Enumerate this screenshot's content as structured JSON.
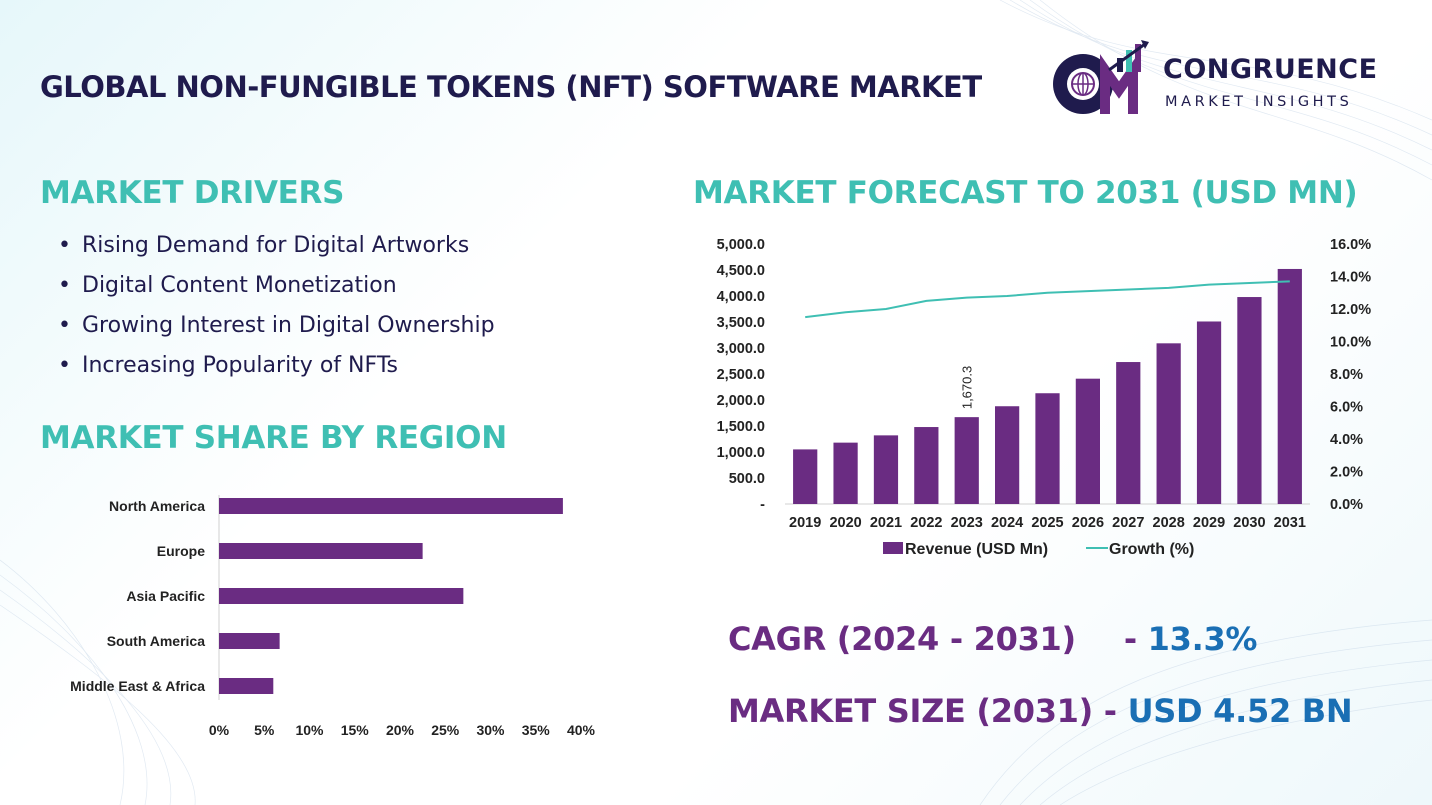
{
  "header": {
    "title": "GLOBAL NON-FUNGIBLE TOKENS (NFT) SOFTWARE MARKET",
    "logo_name": "CONGRUENCE",
    "logo_sub": "MARKET INSIGHTS"
  },
  "drivers": {
    "heading": "MARKET DRIVERS",
    "items": [
      "Rising Demand for Digital Artworks",
      "Digital Content Monetization",
      "Growing Interest in Digital Ownership",
      "Increasing Popularity of NFTs"
    ]
  },
  "region": {
    "heading": "MARKET SHARE BY REGION"
  },
  "forecast": {
    "heading": "MARKET FORECAST TO 2031 (USD MN)"
  },
  "stats": {
    "cagr_label": "CAGR (2024 - 2031)",
    "cagr_sep": "- ",
    "cagr_value": "13.3%",
    "size_label": "MARKET SIZE (2031)",
    "size_sep": " - ",
    "size_value": "USD 4.52 BN"
  },
  "colors": {
    "bar": "#6a2c82",
    "line": "#3fbfb3",
    "heading": "#3fbfb3",
    "title": "#1f1b4d",
    "value_blue": "#1a6fb4"
  },
  "chart_data": [
    {
      "type": "bar",
      "orientation": "horizontal",
      "categories": [
        "North America",
        "Europe",
        "Asia Pacific",
        "South America",
        "Middle East & Africa"
      ],
      "values": [
        38,
        22.5,
        27,
        6.7,
        6
      ],
      "x_ticks": [
        "0%",
        "5%",
        "10%",
        "15%",
        "20%",
        "25%",
        "30%",
        "35%",
        "40%"
      ],
      "xlim": [
        0,
        40
      ],
      "grid": false
    },
    {
      "type": "bar",
      "categories": [
        "2019",
        "2020",
        "2021",
        "2022",
        "2023",
        "2024",
        "2025",
        "2026",
        "2027",
        "2028",
        "2029",
        "2030",
        "2031"
      ],
      "series": [
        {
          "name": "Revenue (USD Mn)",
          "type": "bar",
          "axis": "left",
          "values": [
            1050,
            1180,
            1320,
            1480,
            1670.3,
            1880,
            2130,
            2410,
            2730,
            3090,
            3510,
            3980,
            4520
          ]
        },
        {
          "name": "Growth (%)",
          "type": "line",
          "axis": "right",
          "values": [
            11.5,
            11.8,
            12.0,
            12.5,
            12.7,
            12.8,
            13.0,
            13.1,
            13.2,
            13.3,
            13.5,
            13.6,
            13.7
          ]
        }
      ],
      "data_labels": [
        {
          "index": 4,
          "text": "1,670.3"
        }
      ],
      "y_ticks_left": [
        "-",
        "500.0",
        "1,000.0",
        "1,500.0",
        "2,000.0",
        "2,500.0",
        "3,000.0",
        "3,500.0",
        "4,000.0",
        "4,500.0",
        "5,000.0"
      ],
      "y_ticks_right": [
        "0.0%",
        "2.0%",
        "4.0%",
        "6.0%",
        "8.0%",
        "10.0%",
        "12.0%",
        "14.0%",
        "16.0%"
      ],
      "ylim_left": [
        0,
        5000
      ],
      "ylim_right": [
        0,
        16
      ],
      "legend": "bottom",
      "grid": false
    }
  ]
}
